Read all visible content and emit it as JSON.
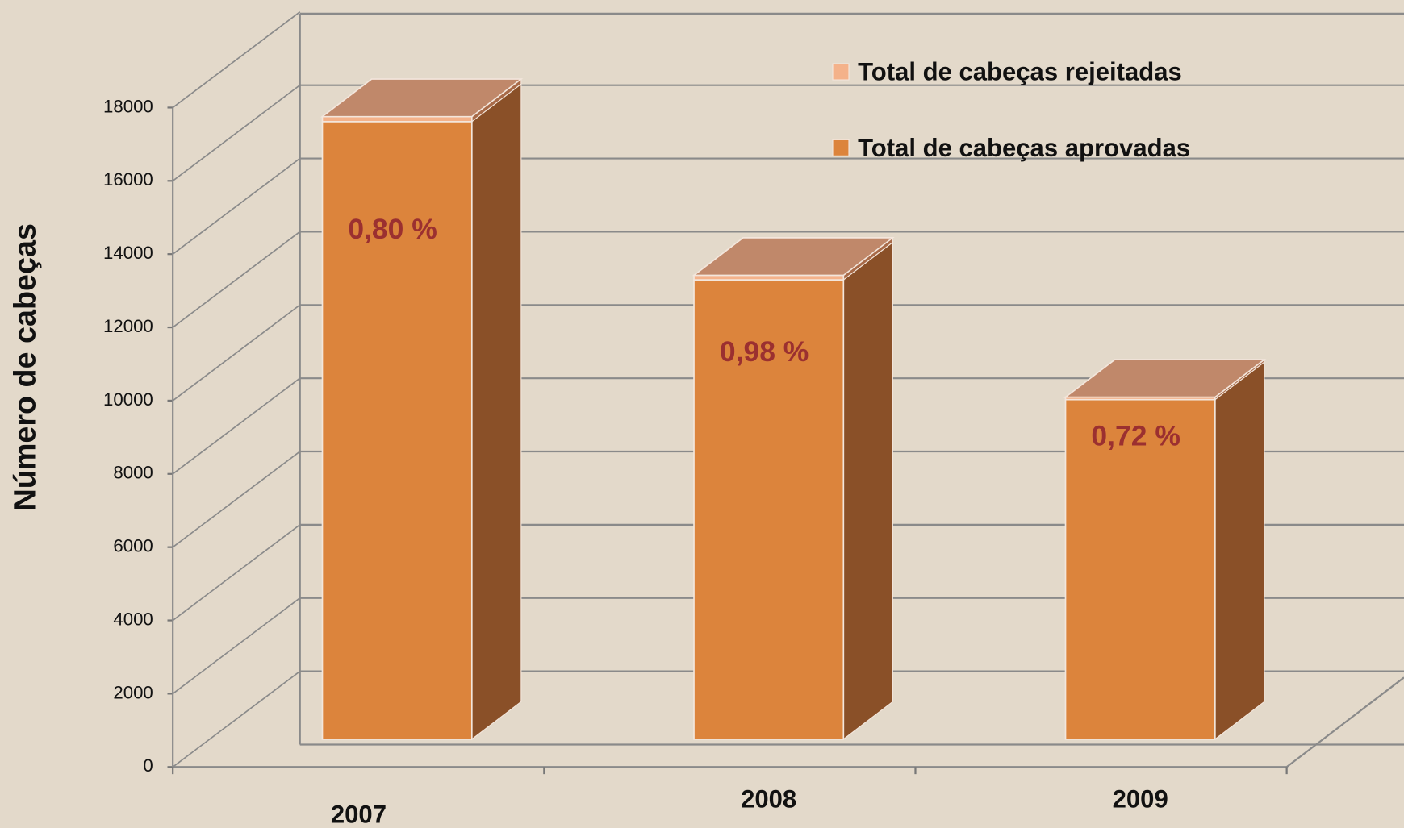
{
  "chart_data": {
    "type": "bar3d_stacked",
    "y_label": "Número de cabeças",
    "categories": [
      "2007",
      "2008",
      "2009"
    ],
    "series": [
      {
        "name": "Total de cabeças aprovadas",
        "color": "#dc843c",
        "values": [
          16860,
          12540,
          9270
        ]
      },
      {
        "name": "Total de cabeças rejeitadas",
        "color": "#f4b28a",
        "values": [
          136,
          124,
          67
        ]
      }
    ],
    "annotations": [
      "0,80 %",
      "0,98 %",
      "0,72 %"
    ],
    "ylim": [
      0,
      18000
    ],
    "yticks": [
      0,
      2000,
      4000,
      6000,
      8000,
      10000,
      12000,
      14000,
      16000,
      18000
    ],
    "grid": true
  }
}
